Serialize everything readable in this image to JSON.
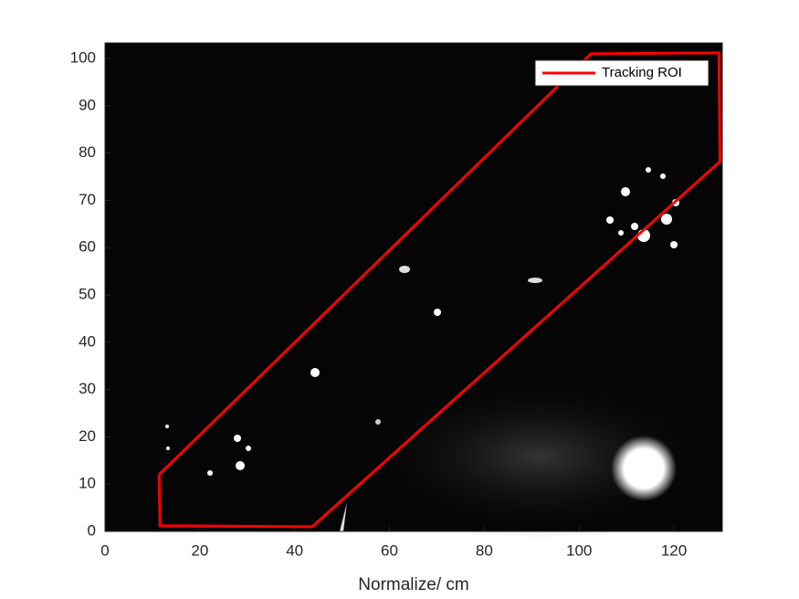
{
  "chart_data": {
    "type": "line",
    "x_label": "Normalize/ cm",
    "xlim": [
      0,
      130.2
    ],
    "ylim": [
      0,
      103.3
    ],
    "xticks": [
      0,
      20,
      40,
      60,
      80,
      100,
      120
    ],
    "yticks": [
      0,
      10,
      20,
      30,
      40,
      50,
      60,
      70,
      80,
      90,
      100
    ],
    "grid": false,
    "legend": "upper right",
    "series": [
      {
        "name": "Tracking ROI",
        "color": "#ff0000",
        "x": [
          11.4,
          11.6,
          43.7,
          129.7,
          129.5,
          102.5,
          11.4
        ],
        "values": [
          12.0,
          1.2,
          1.0,
          78.2,
          101.2,
          101.0,
          12.0
        ]
      }
    ]
  }
}
